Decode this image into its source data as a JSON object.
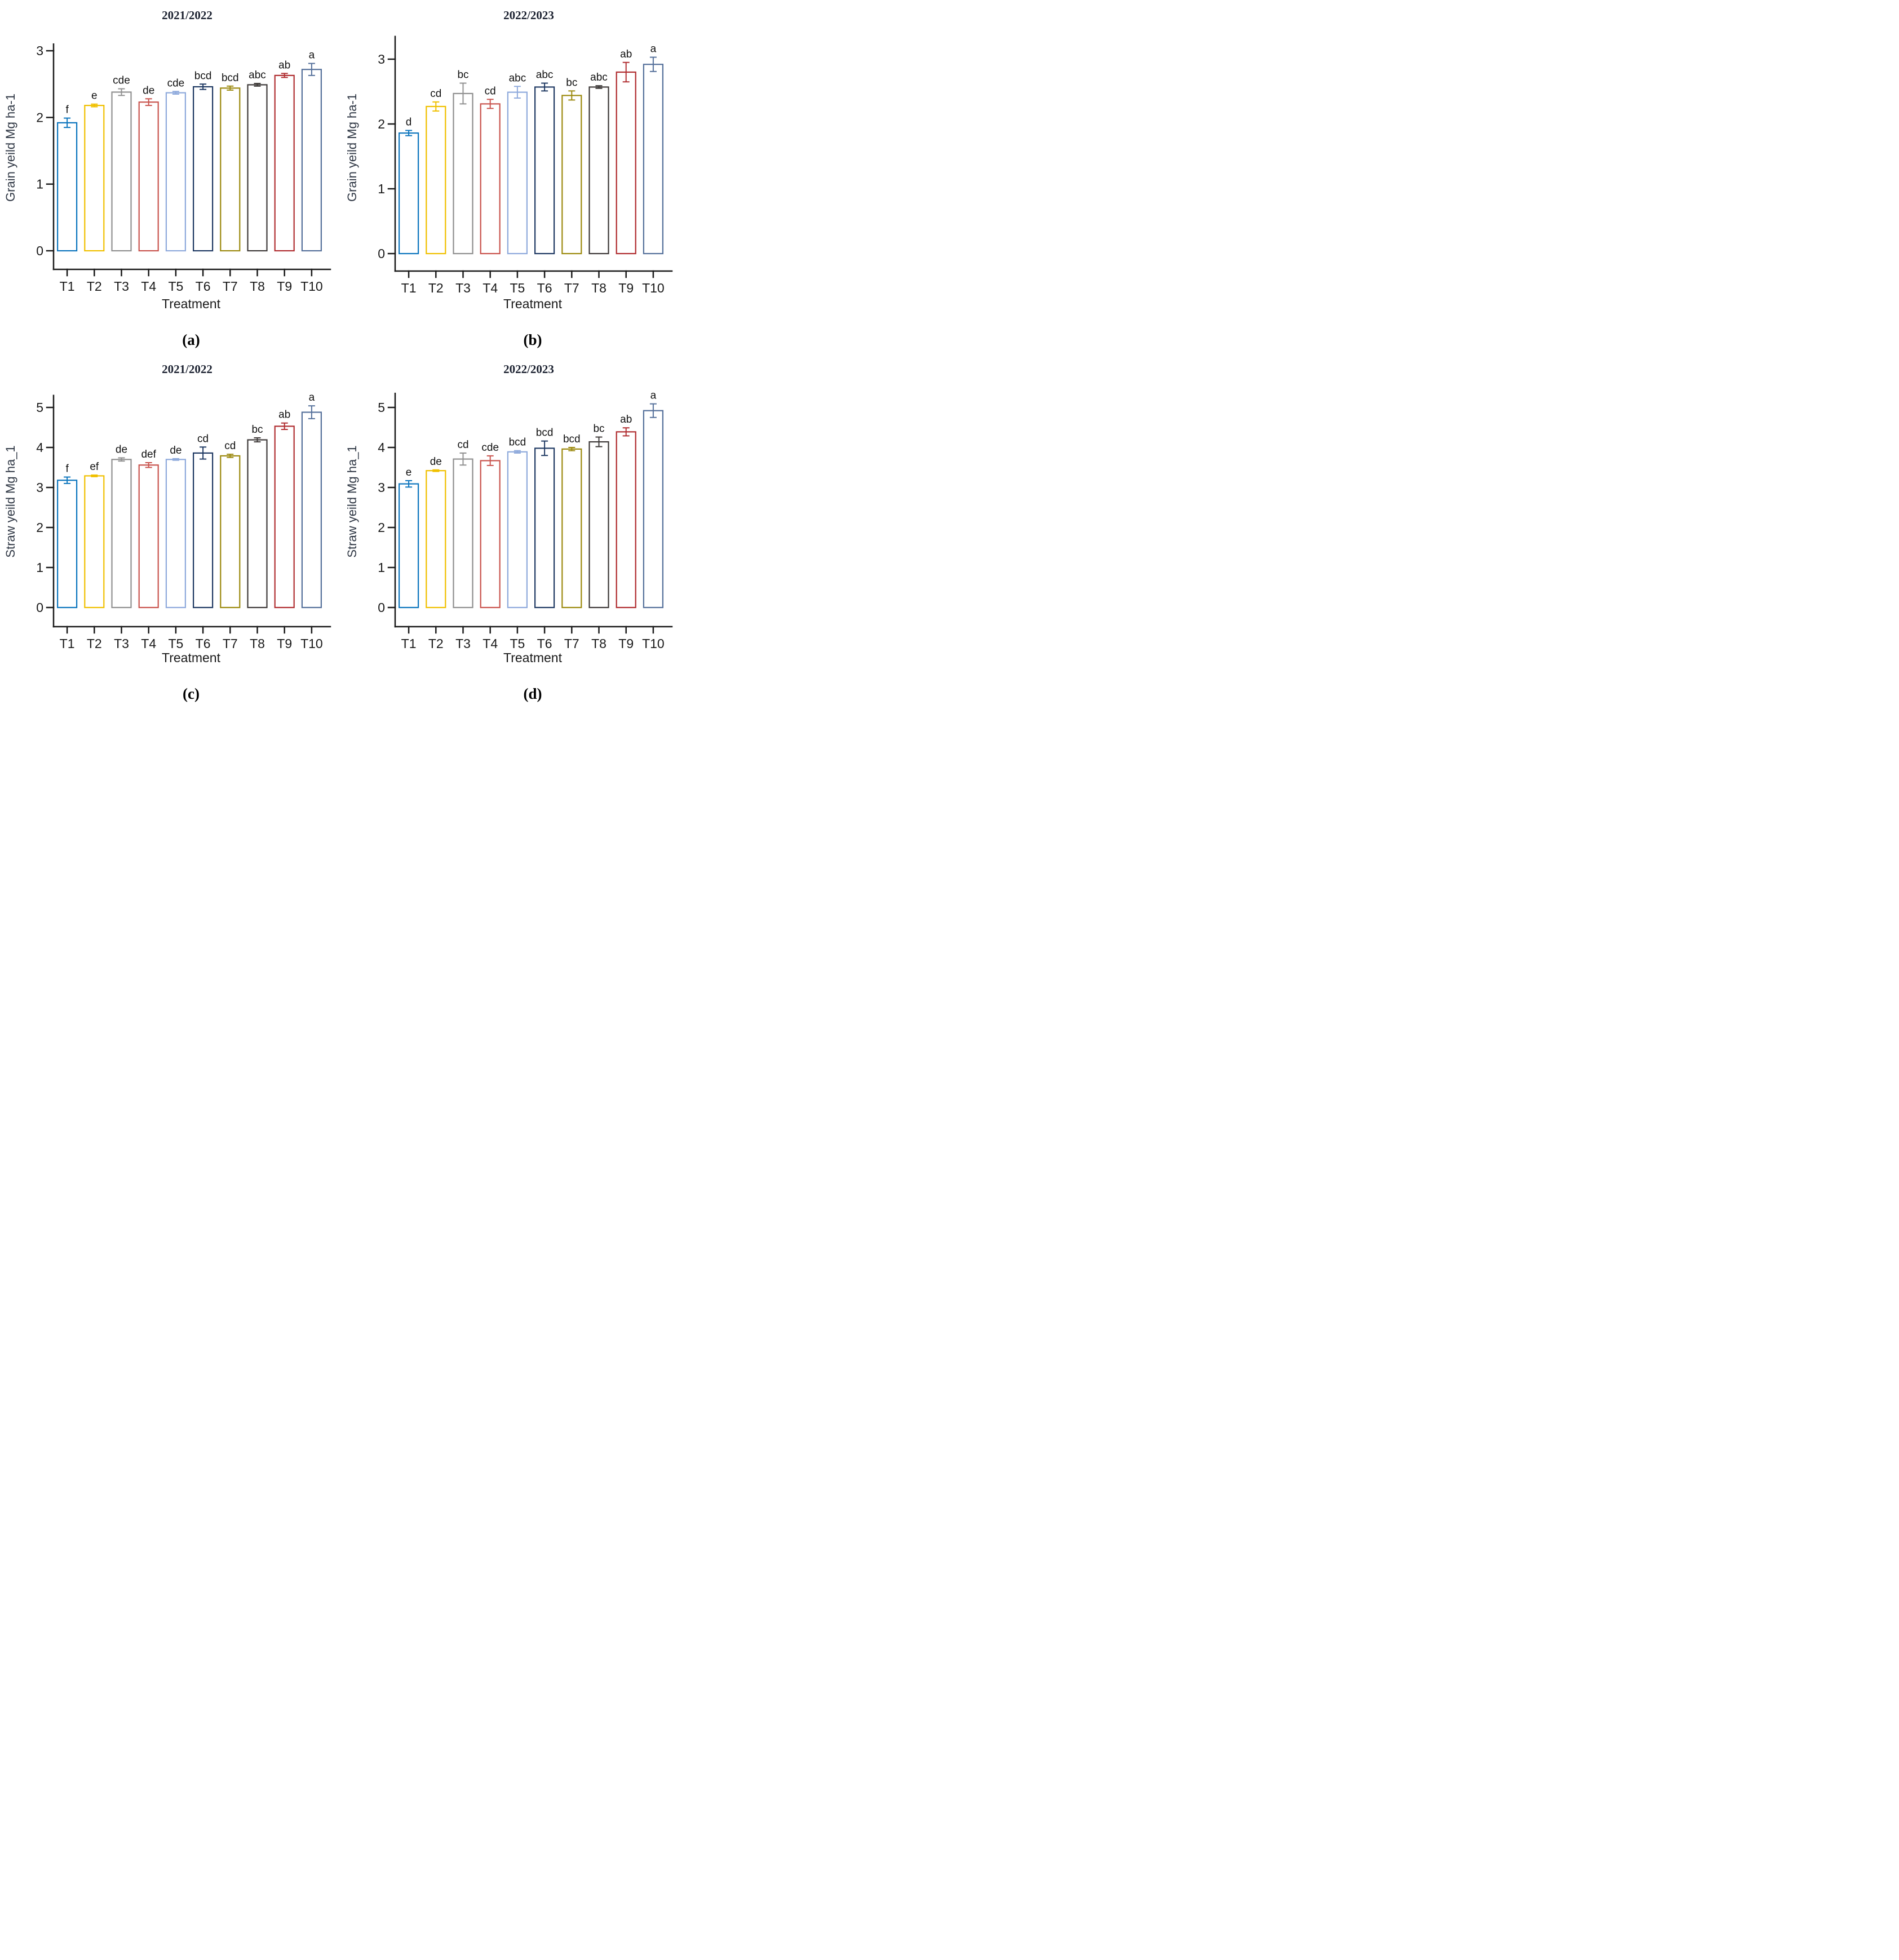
{
  "figure": {
    "categories": [
      "T1",
      "T2",
      "T3",
      "T4",
      "T5",
      "T6",
      "T7",
      "T8",
      "T9",
      "T10"
    ],
    "bar_colors": [
      "#0e76be",
      "#f0c000",
      "#909090",
      "#c9544e",
      "#8faadc",
      "#203a63",
      "#9c8a10",
      "#3e3a39",
      "#b02e31",
      "#56719b"
    ],
    "axis_color": "#1a1a1a",
    "title_color": "#1b2130"
  },
  "chart_data": [
    {
      "type": "bar",
      "panel": "a",
      "title": "2021/2022",
      "ylabel": "Grain yeild Mg ha-1",
      "xlabel": "Treatment",
      "caption": "(a)",
      "categories": [
        "T1",
        "T2",
        "T3",
        "T4",
        "T5",
        "T6",
        "T7",
        "T8",
        "T9",
        "T10"
      ],
      "values": [
        1.92,
        2.18,
        2.38,
        2.23,
        2.37,
        2.46,
        2.44,
        2.49,
        2.63,
        2.72
      ],
      "errors": [
        0.07,
        0.02,
        0.05,
        0.05,
        0.02,
        0.04,
        0.03,
        0.02,
        0.03,
        0.09
      ],
      "sig_letters": [
        "f",
        "e",
        "cde",
        "de",
        "cde",
        "bcd",
        "bcd",
        "abc",
        "ab",
        "a"
      ],
      "yticks": [
        0,
        1,
        2,
        3
      ],
      "ylim": [
        0,
        3.1
      ],
      "grid": false,
      "legend": "none"
    },
    {
      "type": "bar",
      "panel": "b",
      "title": "2022/2023",
      "ylabel": "Grain yeild Mg ha-1",
      "xlabel": "Treatment",
      "caption": "(b)",
      "categories": [
        "T1",
        "T2",
        "T3",
        "T4",
        "T5",
        "T6",
        "T7",
        "T8",
        "T9",
        "T10"
      ],
      "values": [
        1.86,
        2.27,
        2.47,
        2.31,
        2.49,
        2.57,
        2.44,
        2.57,
        2.8,
        2.92
      ],
      "errors": [
        0.04,
        0.07,
        0.16,
        0.07,
        0.09,
        0.06,
        0.07,
        0.02,
        0.15,
        0.11
      ],
      "sig_letters": [
        "d",
        "cd",
        "bc",
        "cd",
        "abc",
        "abc",
        "bc",
        "abc",
        "ab",
        "a"
      ],
      "yticks": [
        0,
        1,
        2,
        3
      ],
      "ylim": [
        0,
        3.35
      ],
      "grid": false,
      "legend": "none"
    },
    {
      "type": "bar",
      "panel": "c",
      "title": "2021/2022",
      "ylabel": "Straw yeild Mg ha_1",
      "xlabel": "Treatment",
      "caption": "(c)",
      "categories": [
        "T1",
        "T2",
        "T3",
        "T4",
        "T5",
        "T6",
        "T7",
        "T8",
        "T9",
        "T10"
      ],
      "values": [
        3.18,
        3.29,
        3.7,
        3.56,
        3.7,
        3.86,
        3.79,
        4.19,
        4.53,
        4.88
      ],
      "errors": [
        0.08,
        0.02,
        0.04,
        0.06,
        0.02,
        0.15,
        0.04,
        0.05,
        0.08,
        0.16
      ],
      "sig_letters": [
        "f",
        "ef",
        "de",
        "def",
        "de",
        "cd",
        "cd",
        "bc",
        "ab",
        "a"
      ],
      "yticks": [
        0,
        1,
        2,
        3,
        4,
        5
      ],
      "ylim": [
        0,
        5.3
      ],
      "grid": false,
      "legend": "none"
    },
    {
      "type": "bar",
      "panel": "d",
      "title": "2022/2023",
      "ylabel": "Straw yeild Mg ha_1",
      "xlabel": "Treatment",
      "caption": "(d)",
      "categories": [
        "T1",
        "T2",
        "T3",
        "T4",
        "T5",
        "T6",
        "T7",
        "T8",
        "T9",
        "T10"
      ],
      "values": [
        3.09,
        3.42,
        3.71,
        3.67,
        3.89,
        3.98,
        3.96,
        4.14,
        4.39,
        4.92
      ],
      "errors": [
        0.08,
        0.02,
        0.15,
        0.12,
        0.03,
        0.18,
        0.04,
        0.12,
        0.1,
        0.17
      ],
      "sig_letters": [
        "e",
        "de",
        "cd",
        "cde",
        "bcd",
        "bcd",
        "bcd",
        "bc",
        "ab",
        "a"
      ],
      "yticks": [
        0,
        1,
        2,
        3,
        4,
        5
      ],
      "ylim": [
        0,
        5.35
      ],
      "grid": false,
      "legend": "none"
    }
  ]
}
